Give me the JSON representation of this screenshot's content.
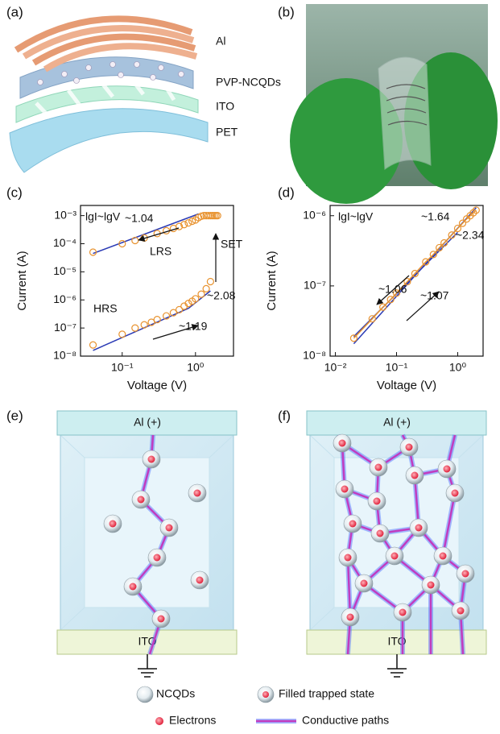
{
  "panel_labels": [
    "(a)",
    "(b)",
    "(c)",
    "(d)",
    "(e)",
    "(f)"
  ],
  "panel_a": {
    "layers": [
      "Al",
      "PVP-NCQDs",
      "ITO",
      "PET"
    ]
  },
  "chart_data": [
    {
      "type": "scatter",
      "x_label": "Voltage (V)",
      "y_label": "Current (A)",
      "xscale": "log",
      "yscale": "log",
      "xlim": [
        0.027,
        3.3
      ],
      "ylim": [
        1e-08,
        0.0023
      ],
      "xticks": [
        {
          "value": 0.1,
          "label": "10⁻¹"
        },
        {
          "value": 1,
          "label": "10⁰"
        }
      ],
      "yticks": [
        {
          "value": 1e-08,
          "label": "10⁻⁸"
        },
        {
          "value": 1e-07,
          "label": "10⁻⁷"
        },
        {
          "value": 1e-06,
          "label": "10⁻⁶"
        },
        {
          "value": 1e-05,
          "label": "10⁻⁵"
        },
        {
          "value": 0.0001,
          "label": "10⁻⁴"
        },
        {
          "value": 0.001,
          "label": "10⁻³"
        }
      ],
      "annotations": [
        "lgI~lgV",
        "~1.04",
        "~2.08",
        "~1.19",
        "SET"
      ],
      "series": [
        {
          "name": "LRS",
          "color": "#e8922e",
          "x": [
            0.04,
            0.1,
            0.15,
            0.2,
            0.3,
            0.4,
            0.5,
            0.6,
            0.7,
            0.8,
            0.9,
            1.0,
            1.1,
            1.2,
            1.3,
            1.4,
            1.5,
            1.6,
            1.7,
            1.8,
            1.9,
            2.0
          ],
          "values": [
            5e-05,
            0.0001,
            0.00013,
            0.00016,
            0.00023,
            0.00029,
            0.00035,
            0.00041,
            0.00048,
            0.00055,
            0.00063,
            0.0007,
            0.00085,
            0.00095,
            0.001,
            0.001,
            0.001,
            0.001,
            0.001,
            0.001,
            0.001,
            0.001
          ]
        },
        {
          "name": "HRS",
          "color": "#e8922e",
          "x": [
            0.04,
            0.1,
            0.15,
            0.2,
            0.25,
            0.3,
            0.4,
            0.5,
            0.6,
            0.7,
            0.8,
            0.9,
            1.0,
            1.2,
            1.4,
            1.6
          ],
          "values": [
            2.5e-08,
            6e-08,
            1e-07,
            1.3e-07,
            1.6e-07,
            2e-07,
            2.7e-07,
            3.5e-07,
            4.5e-07,
            6e-07,
            7.5e-07,
            9e-07,
            1.1e-06,
            1.6e-06,
            2.5e-06,
            4.5e-06
          ]
        }
      ],
      "fits": [
        {
          "color": "#2a3ab5",
          "x": [
            0.04,
            1.1
          ],
          "values": [
            4.5e-05,
            0.00115
          ]
        },
        {
          "color": "#2a3ab5",
          "x": [
            0.04,
            0.8
          ],
          "values": [
            1.6e-08,
            5e-07
          ]
        },
        {
          "color": "#2a3ab5",
          "x": [
            0.8,
            1.6
          ],
          "values": [
            5e-07,
            2.1e-06
          ]
        }
      ]
    },
    {
      "type": "scatter",
      "connect": true,
      "x_label": "Voltage (V)",
      "y_label": "Current (A)",
      "xscale": "log",
      "yscale": "log",
      "xlim": [
        0.0082,
        2.6
      ],
      "ylim": [
        1e-08,
        1.4e-06
      ],
      "xticks": [
        {
          "value": 0.01,
          "label": "10⁻²"
        },
        {
          "value": 0.1,
          "label": "10⁻¹"
        },
        {
          "value": 1,
          "label": "10⁰"
        }
      ],
      "yticks": [
        {
          "value": 1e-08,
          "label": "10⁻⁸"
        },
        {
          "value": 1e-07,
          "label": "10⁻⁷"
        },
        {
          "value": 1e-06,
          "label": "10⁻⁶"
        }
      ],
      "annotations": [
        "lgI~lgV",
        "~1.64",
        "~2.34",
        "~1.06",
        "~1.07"
      ],
      "series": [
        {
          "color": "#e8922e",
          "x": [
            0.02,
            0.04,
            0.06,
            0.08,
            0.1,
            0.15,
            0.2,
            0.3,
            0.4,
            0.5,
            0.6,
            0.8,
            1.0,
            1.2,
            1.4,
            1.6,
            1.8,
            2.0
          ],
          "values": [
            1.8e-08,
            3.4e-08,
            5e-08,
            6.4e-08,
            7.9e-08,
            1.15e-07,
            1.5e-07,
            2.2e-07,
            2.8e-07,
            3.5e-07,
            4.1e-07,
            5.3e-07,
            6.6e-07,
            7.8e-07,
            9e-07,
            1e-06,
            1.1e-06,
            1.2e-06
          ]
        }
      ],
      "fits": [
        {
          "color": "#2a3ab5",
          "x": [
            0.02,
            2.0
          ],
          "values": [
            1.5e-08,
            1.3e-06
          ]
        },
        {
          "color": "#2a3ab5",
          "x": [
            0.02,
            1.0
          ],
          "values": [
            1.9e-08,
            5.8e-07
          ]
        }
      ]
    }
  ],
  "panel_e": {
    "top_electrode": "Al (+)",
    "bottom_electrode": "ITO"
  },
  "panel_f": {
    "top_electrode": "Al (+)",
    "bottom_electrode": "ITO"
  },
  "legend": [
    "NCQDs",
    "Filled trapped state",
    "Electrons",
    "Conductive paths"
  ]
}
